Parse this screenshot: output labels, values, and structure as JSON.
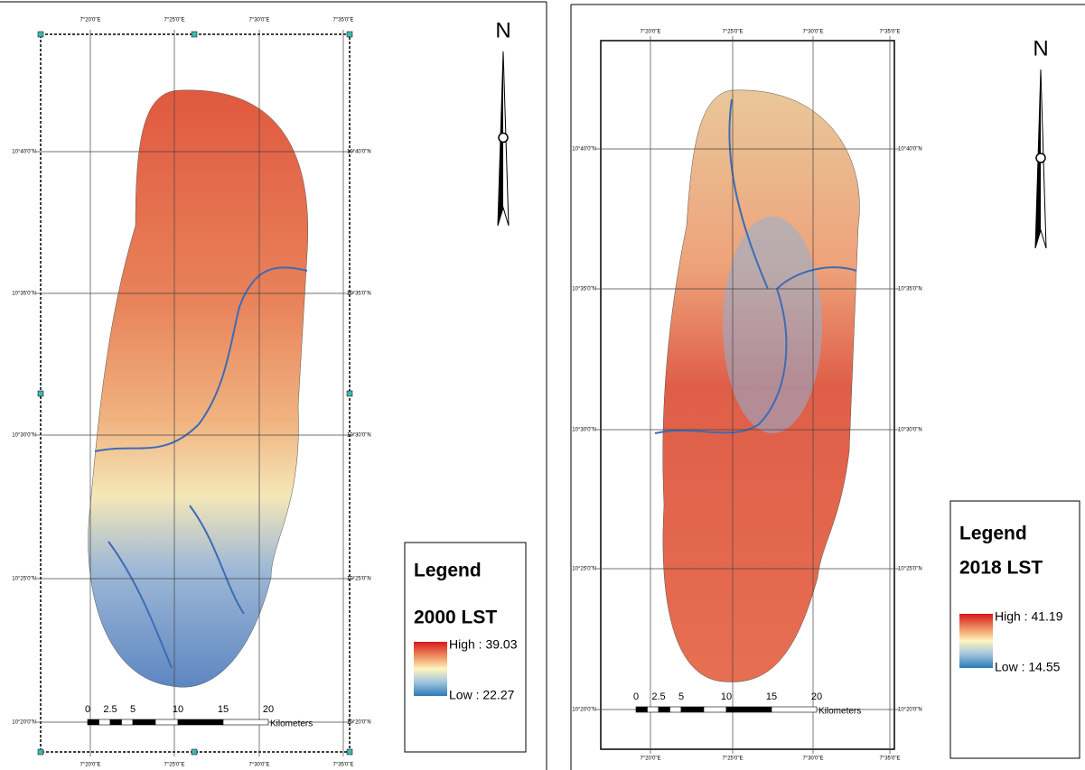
{
  "maps": [
    {
      "top_labels": [
        "7°20'0\"E",
        "7°25'0\"E",
        "7°30'0\"E",
        "7°35'0\"E"
      ],
      "side_labels": [
        "10°40'0\"N",
        "10°35'0\"N",
        "10°30'0\"N",
        "10°25'0\"N",
        "10°20'0\"N"
      ],
      "north": "N",
      "legend": {
        "title": "Legend",
        "subtitle": "2000 LST",
        "high": "High : 39.03",
        "low": "Low : 22.27"
      },
      "scale": {
        "ticks": [
          "0",
          "2.5",
          "5",
          "10",
          "15",
          "20"
        ],
        "unit": "Kilometers"
      }
    },
    {
      "top_labels": [
        "7°20'0\"E",
        "7°25'0\"E",
        "7°30'0\"E",
        "7°35'0\"E"
      ],
      "side_labels": [
        "10°40'0\"N",
        "10°35'0\"N",
        "10°30'0\"N",
        "10°25'0\"N",
        "10°20'0\"N"
      ],
      "north": "N",
      "legend": {
        "title": "Legend",
        "subtitle": "2018 LST",
        "high": "High : 41.19",
        "low": "Low : 14.55"
      },
      "scale": {
        "ticks": [
          "0",
          "2.5",
          "5",
          "10",
          "15",
          "20"
        ],
        "unit": "Kilometers"
      }
    }
  ]
}
